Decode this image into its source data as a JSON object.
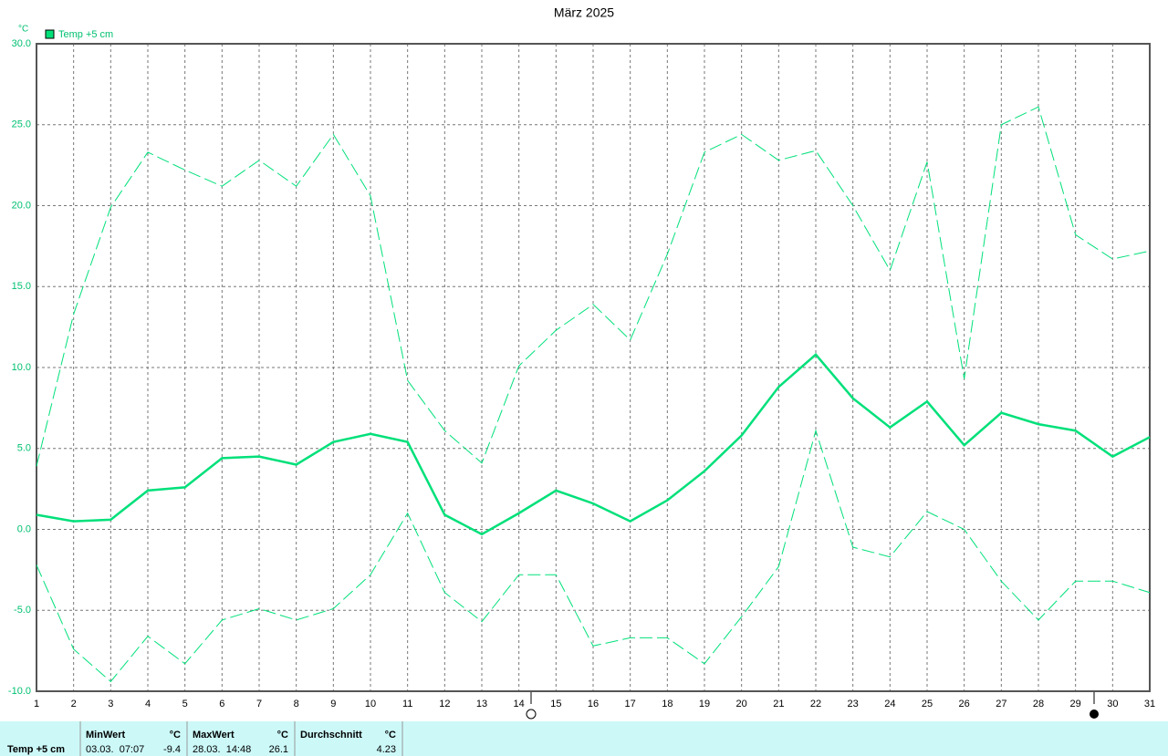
{
  "chart_data": {
    "type": "line",
    "title": "März 2025",
    "y_unit": "°C",
    "categories": [
      "1",
      "2",
      "3",
      "4",
      "5",
      "6",
      "7",
      "8",
      "9",
      "10",
      "11",
      "12",
      "13",
      "14",
      "15",
      "16",
      "17",
      "18",
      "19",
      "20",
      "21",
      "22",
      "23",
      "24",
      "25",
      "26",
      "27",
      "28",
      "29",
      "30",
      "31"
    ],
    "series": [
      {
        "name": "Temp +5 cm",
        "color": "#00e07a",
        "dashed": false,
        "values": [
          0.9,
          0.5,
          0.6,
          2.4,
          2.6,
          4.4,
          4.5,
          4.0,
          5.4,
          5.9,
          5.4,
          0.9,
          -0.3,
          1.0,
          2.4,
          1.6,
          0.5,
          1.8,
          3.6,
          5.8,
          8.8,
          10.8,
          8.1,
          6.3,
          7.9,
          5.2,
          7.2,
          6.5,
          6.1,
          4.5,
          5.7
        ]
      },
      {
        "color": "#00e07a",
        "dashed": true,
        "values": [
          3.9,
          13.3,
          19.9,
          23.3,
          22.2,
          21.2,
          22.8,
          21.2,
          24.4,
          20.6,
          9.2,
          6.1,
          4.1,
          10.1,
          12.3,
          13.9,
          11.7,
          17.0,
          23.3,
          24.4,
          22.8,
          23.4,
          20.0,
          16.0,
          22.7,
          9.3,
          25.0,
          26.1,
          18.2,
          16.7,
          17.2
        ]
      },
      {
        "color": "#00e07a",
        "dashed": true,
        "values": [
          -2.2,
          -7.4,
          -9.4,
          -6.6,
          -8.3,
          -5.6,
          -4.9,
          -5.6,
          -4.9,
          -2.8,
          1.0,
          -3.9,
          -5.7,
          -2.8,
          -2.8,
          -7.2,
          -6.7,
          -6.7,
          -8.3,
          -5.4,
          -2.3,
          6.1,
          -1.1,
          -1.7,
          1.1,
          0.0,
          -3.2,
          -5.6,
          -3.2,
          -3.2,
          -3.9
        ]
      }
    ],
    "ylim": [
      -10,
      30
    ],
    "yticks": [
      {
        "value": -10,
        "label": "-10.0"
      },
      {
        "value": -5,
        "label": "-5.0"
      },
      {
        "value": 0,
        "label": "0.0"
      },
      {
        "value": 5,
        "label": "5.0"
      },
      {
        "value": 10,
        "label": "10.0"
      },
      {
        "value": 15,
        "label": "15.0"
      },
      {
        "value": 20,
        "label": "20.0"
      },
      {
        "value": 25,
        "label": "25.0"
      },
      {
        "value": 30,
        "label": "30.0"
      }
    ],
    "grid": true
  },
  "table": {
    "label": "Temp +5 cm",
    "columns": [
      {
        "header": "MinWert",
        "unit": "°C",
        "date": "03.03.  07:07",
        "value": -9.4
      },
      {
        "header": "MaxWert",
        "unit": "°C",
        "date": "28.03.  14:48",
        "value": 26.1
      },
      {
        "header": "Durchschnitt",
        "unit": "°C",
        "value": 4.23
      }
    ]
  }
}
